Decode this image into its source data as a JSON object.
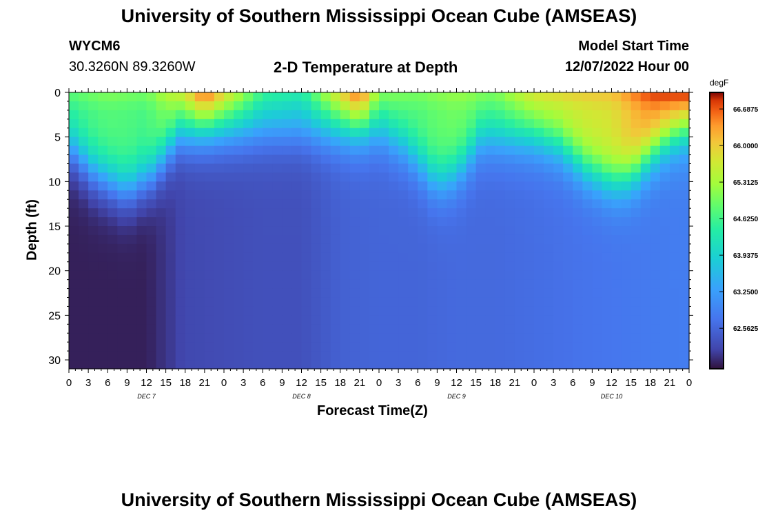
{
  "header": {
    "title": "University of Southern Mississippi Ocean Cube (AMSEAS)",
    "station": "WYCM6",
    "coords": "30.3260N  89.3260W",
    "subtitle": "2-D Temperature at Depth",
    "model_label": "Model Start Time",
    "model_time": "12/07/2022 Hour 00"
  },
  "footer": {
    "title": "University of Southern Mississippi Ocean Cube (AMSEAS)"
  },
  "chart_data": {
    "type": "heatmap",
    "title": "2-D Temperature at Depth",
    "xlabel": "Forecast Time(Z)",
    "ylabel": "Depth (ft)",
    "ylim": [
      0,
      31
    ],
    "y_inverted": true,
    "y_ticks": [
      0,
      5,
      10,
      15,
      20,
      25,
      30
    ],
    "x_range_hours": [
      0,
      96
    ],
    "x_tick_labels": [
      "0",
      "3",
      "6",
      "9",
      "12",
      "15",
      "18",
      "21",
      "0",
      "3",
      "6",
      "9",
      "12",
      "15",
      "18",
      "21",
      "0",
      "3",
      "6",
      "9",
      "12",
      "15",
      "18",
      "21",
      "0",
      "3",
      "6",
      "9",
      "12",
      "15",
      "18",
      "21",
      "0"
    ],
    "day_labels": [
      "DEC 7",
      "DEC 8",
      "DEC 9",
      "DEC 10"
    ],
    "colorbar": {
      "label": "degF",
      "min": 61.8,
      "max": 67.0,
      "tick_labels": [
        "66.6875",
        "66.0000",
        "65.3125",
        "64.6250",
        "63.9375",
        "63.2500",
        "62.5625"
      ],
      "tick_values": [
        66.6875,
        66.0,
        65.3125,
        64.625,
        63.9375,
        63.25,
        62.5625
      ]
    },
    "surface_temp": {
      "hours": [
        0,
        6,
        12,
        18,
        21,
        24,
        30,
        36,
        42,
        45,
        48,
        54,
        60,
        66,
        72,
        78,
        84,
        90,
        96
      ],
      "values": [
        64.6,
        64.8,
        64.7,
        65.6,
        66.6,
        65.8,
        64.5,
        64.3,
        65.8,
        66.6,
        65.0,
        64.8,
        65.0,
        64.9,
        65.6,
        65.7,
        65.8,
        66.5,
        66.8
      ]
    },
    "bottom_temp": {
      "hours": [
        0,
        6,
        12,
        18,
        24,
        30,
        36,
        42,
        48,
        54,
        60,
        66,
        72,
        78,
        84,
        90,
        96
      ],
      "values": [
        61.9,
        61.9,
        61.9,
        62.2,
        62.25,
        62.3,
        62.3,
        62.5,
        62.55,
        62.55,
        62.6,
        62.6,
        62.65,
        62.7,
        62.75,
        62.8,
        62.85
      ]
    },
    "thermocline_depth": {
      "hours": [
        0,
        4,
        9,
        13,
        17,
        21,
        24,
        30,
        36,
        42,
        48,
        52,
        57,
        60,
        64,
        68,
        72,
        76,
        80,
        84,
        87,
        90,
        93,
        96
      ],
      "values": [
        6,
        9,
        11,
        9,
        4.5,
        4,
        4,
        4,
        4,
        4,
        4,
        6,
        10,
        9,
        5,
        5,
        5,
        6,
        8.5,
        10,
        9.5,
        7,
        5,
        4
      ]
    }
  }
}
